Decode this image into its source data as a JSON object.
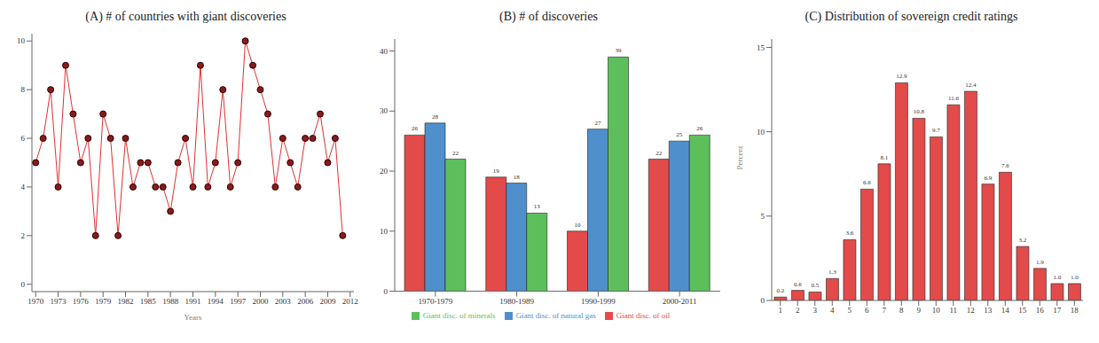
{
  "chart_data": [
    {
      "type": "line",
      "title": "(A) # of countries with giant discoveries",
      "x_label": "Years",
      "x": [
        1970,
        1971,
        1972,
        1973,
        1974,
        1975,
        1976,
        1977,
        1978,
        1979,
        1980,
        1981,
        1982,
        1983,
        1984,
        1985,
        1986,
        1987,
        1988,
        1989,
        1990,
        1991,
        1992,
        1993,
        1994,
        1995,
        1996,
        1997,
        1998,
        1999,
        2000,
        2001,
        2002,
        2003,
        2004,
        2005,
        2006,
        2007,
        2008,
        2009,
        2010,
        2011
      ],
      "values": [
        5,
        6,
        8,
        4,
        9,
        7,
        5,
        6,
        2,
        7,
        6,
        2,
        6,
        4,
        5,
        5,
        4,
        4,
        3,
        5,
        6,
        4,
        9,
        4,
        5,
        8,
        4,
        5,
        10,
        9,
        8,
        7,
        4,
        6,
        5,
        4,
        6,
        6,
        7,
        5,
        6,
        2
      ],
      "xlim": [
        1969.5,
        2012.5
      ],
      "xticks": [
        1970,
        1973,
        1976,
        1979,
        1982,
        1985,
        1988,
        1991,
        1994,
        1997,
        2000,
        2003,
        2006,
        2009,
        2012
      ],
      "ylim": [
        -0.3,
        10.3
      ],
      "yticks": [
        0,
        2,
        4,
        6,
        8,
        10
      ],
      "color": "#e03131",
      "marker": "circle"
    },
    {
      "type": "bar",
      "title": "(B) # of discoveries",
      "categories": [
        "1970-1979",
        "1980-1989",
        "1990-1999",
        "2000-2011"
      ],
      "series": [
        {
          "name": "Giant disc. of oil",
          "color": "#e34a4a",
          "values": [
            26,
            19,
            10,
            22
          ]
        },
        {
          "name": "Giant disc. of natural gas",
          "color": "#4f8fcc",
          "values": [
            28,
            18,
            27,
            25
          ]
        },
        {
          "name": "Giant disc. of minerals",
          "color": "#5cbf5c",
          "values": [
            22,
            13,
            39,
            26
          ]
        }
      ],
      "ylim": [
        0,
        42
      ],
      "yticks": [
        0,
        10,
        20,
        30,
        40
      ],
      "data_labels": true,
      "legend": "bottom"
    },
    {
      "type": "bar",
      "title": "(C) Distribution of sovereign credit ratings",
      "y_label": "Percent",
      "categories": [
        "1",
        "2",
        "3",
        "4",
        "5",
        "6",
        "7",
        "8",
        "9",
        "10",
        "11",
        "12",
        "13",
        "14",
        "15",
        "16",
        "17",
        "18"
      ],
      "values": [
        0.2,
        0.6,
        0.5,
        1.3,
        3.6,
        6.6,
        8.1,
        12.9,
        10.8,
        9.7,
        11.6,
        12.4,
        6.9,
        7.6,
        3.2,
        1.9,
        1.0,
        1.0
      ],
      "value_labels": [
        "0.2",
        "0.6",
        "0.5",
        "1.3",
        "3.6",
        "6.6",
        "8.1",
        "12.9",
        "10.8",
        "9.7",
        "11.6",
        "12.4",
        "6.9",
        "7.6",
        "3.2",
        "1.9",
        "1.0",
        "1.0"
      ],
      "ylim": [
        0,
        15.5
      ],
      "yticks": [
        0,
        5,
        10,
        15
      ],
      "color": "#e34a4a",
      "data_labels": true
    }
  ]
}
